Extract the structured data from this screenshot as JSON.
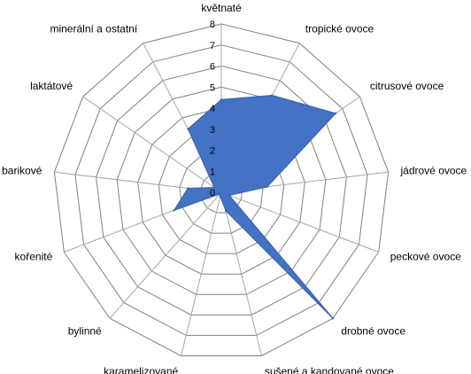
{
  "chart_data": {
    "type": "radar",
    "categories": [
      "květnaté",
      "tropické ovoce",
      "citrusové ovoce",
      "jádrové ovoce",
      "peckové ovoce",
      "drobné ovoce",
      "sušené a kandované ovoce",
      "karamelizované",
      "bylinné",
      "kořenité",
      "barikové",
      "laktátové",
      "minerální a ostatní"
    ],
    "series": [
      {
        "values": [
          4.4,
          5.2,
          6.6,
          2.2,
          0.4,
          8,
          0.9,
          0.2,
          0.1,
          2.4,
          1.6,
          0.4,
          3.4
        ]
      }
    ],
    "rlim": [
      0,
      8
    ],
    "ticks": [
      "0",
      "1",
      "2",
      "3",
      "4",
      "5",
      "6",
      "7",
      "8"
    ],
    "grid": true,
    "legend": "none",
    "colors": {
      "fill": "#4472c4",
      "stroke": "#3a64ad",
      "grid": "#808080",
      "spoke": "#a6a6a6"
    }
  }
}
